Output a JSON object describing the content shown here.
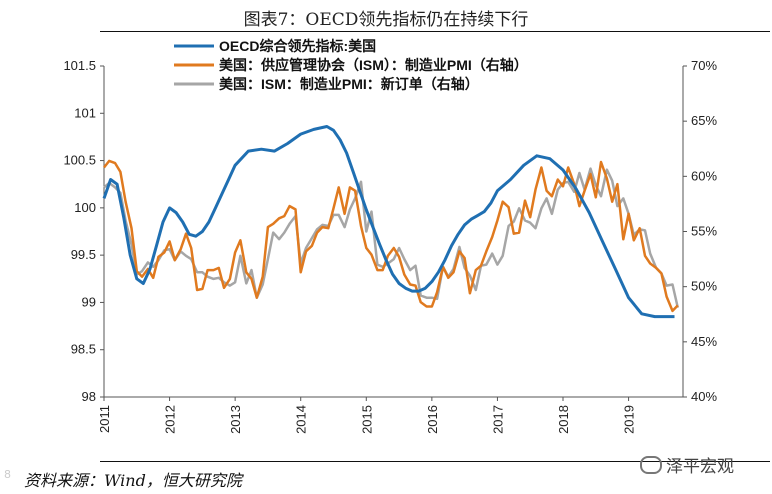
{
  "title": "图表7：OECD领先指标仍在持续下行",
  "source": "资料来源：Wind，恒大研究院",
  "brand": "泽平宏观",
  "watermark": "8",
  "chart_data": {
    "type": "line",
    "x_ticks": [
      "2011",
      "2012",
      "2013",
      "2014",
      "2015",
      "2016",
      "2017",
      "2018",
      "2019"
    ],
    "x_range": [
      2011.0,
      2019.83
    ],
    "ylim": [
      98,
      101.5
    ],
    "y_ticks": [
      "98",
      "98.5",
      "99",
      "99.5",
      "100",
      "100.5",
      "101",
      "101.5"
    ],
    "y2lim": [
      40,
      70
    ],
    "y2_ticks": [
      "40%",
      "45%",
      "50%",
      "55%",
      "60%",
      "65%",
      "70%"
    ],
    "legend_position": "top-left",
    "grid": false,
    "series": [
      {
        "name": "OECD综合领先指标:美国",
        "axis": "left",
        "color": "#1f6fb2",
        "x": [
          2011.0,
          2011.1,
          2011.2,
          2011.3,
          2011.4,
          2011.5,
          2011.6,
          2011.7,
          2011.8,
          2011.9,
          2012.0,
          2012.1,
          2012.2,
          2012.3,
          2012.4,
          2012.5,
          2012.6,
          2012.7,
          2012.8,
          2012.9,
          2013.0,
          2013.2,
          2013.4,
          2013.6,
          2013.8,
          2014.0,
          2014.2,
          2014.4,
          2014.5,
          2014.6,
          2014.7,
          2014.8,
          2014.9,
          2015.0,
          2015.1,
          2015.2,
          2015.3,
          2015.4,
          2015.5,
          2015.6,
          2015.7,
          2015.8,
          2015.9,
          2016.0,
          2016.1,
          2016.2,
          2016.3,
          2016.4,
          2016.5,
          2016.6,
          2016.7,
          2016.8,
          2016.9,
          2017.0,
          2017.2,
          2017.4,
          2017.6,
          2017.8,
          2018.0,
          2018.2,
          2018.4,
          2018.6,
          2018.8,
          2019.0,
          2019.2,
          2019.4,
          2019.6,
          2019.7
        ],
        "values": [
          100.1,
          100.3,
          100.25,
          99.9,
          99.5,
          99.25,
          99.2,
          99.35,
          99.6,
          99.85,
          100.0,
          99.95,
          99.85,
          99.72,
          99.7,
          99.75,
          99.85,
          100.0,
          100.15,
          100.3,
          100.45,
          100.6,
          100.62,
          100.6,
          100.68,
          100.78,
          100.83,
          100.86,
          100.82,
          100.72,
          100.58,
          100.38,
          100.18,
          99.98,
          99.8,
          99.62,
          99.45,
          99.3,
          99.2,
          99.15,
          99.12,
          99.12,
          99.15,
          99.22,
          99.32,
          99.45,
          99.6,
          99.72,
          99.82,
          99.88,
          99.92,
          99.96,
          100.05,
          100.18,
          100.3,
          100.45,
          100.55,
          100.52,
          100.4,
          100.2,
          99.95,
          99.65,
          99.35,
          99.05,
          98.88,
          98.85,
          98.85,
          98.85
        ]
      },
      {
        "name": "美国：供应管理协会（ISM）：制造业PMI（右轴）",
        "axis": "right",
        "color": "#e07a1f",
        "x": [
          2011.0,
          2011.08,
          2011.17,
          2011.25,
          2011.33,
          2011.42,
          2011.5,
          2011.58,
          2011.67,
          2011.75,
          2011.83,
          2011.92,
          2012.0,
          2012.08,
          2012.17,
          2012.25,
          2012.33,
          2012.42,
          2012.5,
          2012.58,
          2012.67,
          2012.75,
          2012.83,
          2012.92,
          2013.0,
          2013.08,
          2013.17,
          2013.25,
          2013.33,
          2013.42,
          2013.5,
          2013.58,
          2013.67,
          2013.75,
          2013.83,
          2013.92,
          2014.0,
          2014.08,
          2014.17,
          2014.25,
          2014.33,
          2014.42,
          2014.5,
          2014.58,
          2014.67,
          2014.75,
          2014.83,
          2014.92,
          2015.0,
          2015.08,
          2015.17,
          2015.25,
          2015.33,
          2015.42,
          2015.5,
          2015.58,
          2015.67,
          2015.75,
          2015.83,
          2015.92,
          2016.0,
          2016.08,
          2016.17,
          2016.25,
          2016.33,
          2016.42,
          2016.5,
          2016.58,
          2016.67,
          2016.75,
          2016.83,
          2016.92,
          2017.0,
          2017.08,
          2017.17,
          2017.25,
          2017.33,
          2017.42,
          2017.5,
          2017.58,
          2017.67,
          2017.75,
          2017.83,
          2017.92,
          2018.0,
          2018.08,
          2018.17,
          2018.25,
          2018.33,
          2018.42,
          2018.5,
          2018.58,
          2018.67,
          2018.75,
          2018.83,
          2018.92,
          2019.0,
          2019.08,
          2019.17,
          2019.25,
          2019.33,
          2019.42,
          2019.5,
          2019.58,
          2019.67,
          2019.75
        ],
        "values": [
          60.8,
          61.4,
          61.2,
          60.4,
          57.7,
          55.3,
          51.4,
          50.9,
          51.6,
          50.8,
          52.7,
          53.1,
          54.1,
          52.4,
          53.4,
          54.8,
          53.5,
          49.7,
          49.8,
          51.5,
          51.5,
          51.7,
          49.9,
          50.7,
          53.1,
          54.2,
          51.3,
          50.7,
          49.0,
          50.9,
          55.4,
          55.7,
          56.2,
          56.4,
          57.3,
          57.0,
          51.3,
          53.2,
          53.7,
          54.9,
          55.4,
          55.3,
          57.1,
          59.0,
          56.6,
          59.0,
          58.7,
          55.5,
          53.5,
          52.9,
          51.5,
          51.5,
          52.8,
          53.5,
          52.7,
          51.1,
          50.2,
          50.1,
          48.6,
          48.2,
          48.2,
          49.5,
          51.8,
          50.8,
          51.3,
          53.2,
          52.6,
          49.4,
          51.5,
          51.9,
          53.2,
          54.5,
          56.0,
          57.7,
          57.2,
          54.8,
          54.9,
          57.8,
          56.3,
          58.8,
          60.8,
          58.7,
          58.2,
          59.7,
          59.1,
          60.8,
          59.3,
          57.3,
          58.7,
          60.2,
          58.1,
          61.3,
          59.8,
          57.7,
          59.3,
          54.3,
          56.6,
          54.2,
          55.3,
          52.8,
          52.1,
          51.7,
          51.2,
          49.1,
          47.8,
          48.3
        ]
      },
      {
        "name": "美国：ISM：制造业PMI：新订单（右轴）",
        "axis": "right",
        "color": "#a6a6a6",
        "x": [
          2011.0,
          2011.08,
          2011.17,
          2011.25,
          2011.33,
          2011.42,
          2011.5,
          2011.58,
          2011.67,
          2011.75,
          2011.83,
          2011.92,
          2012.0,
          2012.08,
          2012.17,
          2012.25,
          2012.33,
          2012.42,
          2012.5,
          2012.58,
          2012.67,
          2012.75,
          2012.83,
          2012.92,
          2013.0,
          2013.08,
          2013.17,
          2013.25,
          2013.33,
          2013.42,
          2013.5,
          2013.58,
          2013.67,
          2013.75,
          2013.83,
          2013.92,
          2014.0,
          2014.08,
          2014.17,
          2014.25,
          2014.33,
          2014.42,
          2014.5,
          2014.58,
          2014.67,
          2014.75,
          2014.83,
          2014.92,
          2015.0,
          2015.08,
          2015.17,
          2015.25,
          2015.33,
          2015.42,
          2015.5,
          2015.58,
          2015.67,
          2015.75,
          2015.83,
          2015.92,
          2016.0,
          2016.08,
          2016.17,
          2016.25,
          2016.33,
          2016.42,
          2016.5,
          2016.58,
          2016.67,
          2016.75,
          2016.83,
          2016.92,
          2017.0,
          2017.08,
          2017.17,
          2017.25,
          2017.33,
          2017.42,
          2017.5,
          2017.58,
          2017.67,
          2017.75,
          2017.83,
          2017.92,
          2018.0,
          2018.08,
          2018.17,
          2018.25,
          2018.33,
          2018.42,
          2018.5,
          2018.58,
          2018.67,
          2018.75,
          2018.83,
          2018.92,
          2019.0,
          2019.08,
          2019.17,
          2019.25,
          2019.33,
          2019.42,
          2019.5,
          2019.58,
          2019.67,
          2019.75
        ],
        "values": [
          59.0,
          59.4,
          59.0,
          58.5,
          56.0,
          53.8,
          51.1,
          51.4,
          52.2,
          51.8,
          52.4,
          53.3,
          53.4,
          52.4,
          53.2,
          52.8,
          52.5,
          51.3,
          51.3,
          50.9,
          50.7,
          50.8,
          50.4,
          50.1,
          50.4,
          52.8,
          50.3,
          51.5,
          49.0,
          50.2,
          52.5,
          54.9,
          54.3,
          54.9,
          55.7,
          56.4,
          52.1,
          53.5,
          54.4,
          55.2,
          55.6,
          55.5,
          56.5,
          56.5,
          55.4,
          57.0,
          58.0,
          59.5,
          55.0,
          56.8,
          52.0,
          51.8,
          52.1,
          52.5,
          53.5,
          52.5,
          51.5,
          51.9,
          49.2,
          49.0,
          49.0,
          48.9,
          51.8,
          50.9,
          51.6,
          53.6,
          51.7,
          51.0,
          49.7,
          51.9,
          52.0,
          53.0,
          52.0,
          52.8,
          55.5,
          55.9,
          57.1,
          56.0,
          55.8,
          55.3,
          57.1,
          58.0,
          56.6,
          58.8,
          59.4,
          59.5,
          58.6,
          60.3,
          58.8,
          60.7,
          59.2,
          58.2,
          60.6,
          59.6,
          57.3,
          58.0,
          56.6,
          54.7,
          55.2,
          55.1,
          53.0,
          51.7,
          51.2,
          50.1,
          50.2,
          48.1
        ]
      }
    ]
  }
}
